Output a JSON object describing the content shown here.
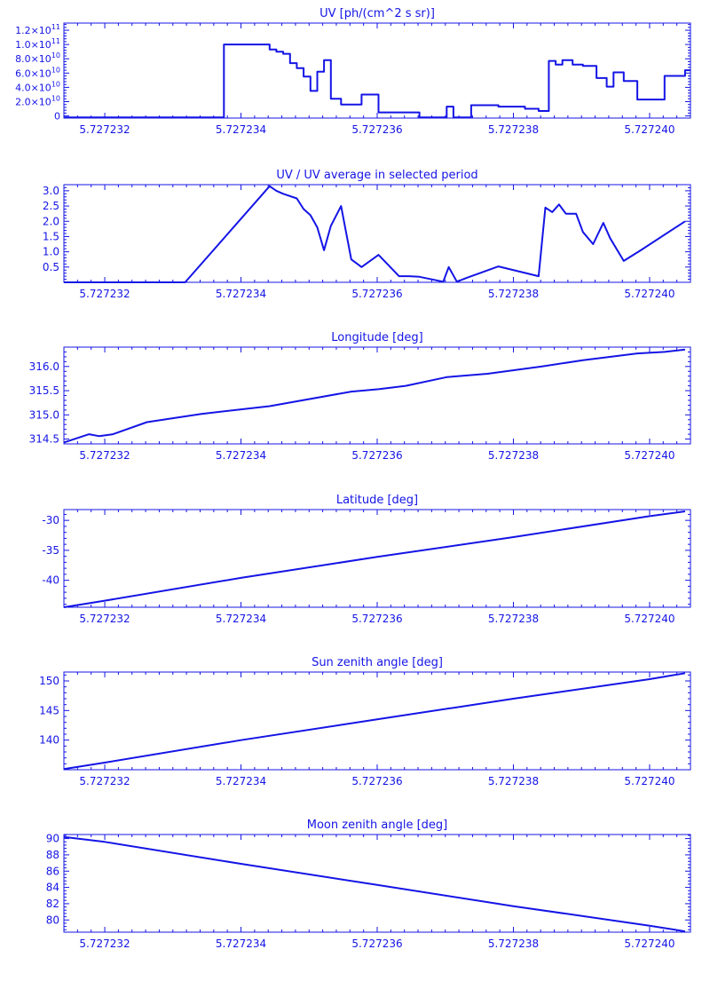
{
  "color": "#1414e6",
  "chart_data": [
    {
      "type": "line",
      "step": true,
      "title": "UV [ph/(cm^2 s sr)]",
      "xlim": [
        5.7272314,
        5.7272406
      ],
      "ylim": [
        -3000000000.0,
        130000000000.0
      ],
      "xticks": [
        5.727232,
        5.727234,
        5.727236,
        5.727238,
        5.72724
      ],
      "xtick_labels": [
        "5.727232",
        "5.727234",
        "5.727236",
        "5.727238",
        "5.727240"
      ],
      "yticks": [
        0,
        20000000000.0,
        40000000000.0,
        60000000000.0,
        80000000000.0,
        100000000000.0,
        120000000000.0
      ],
      "ytick_labels": [
        {
          "mant": "0",
          "exp": ""
        },
        {
          "mant": "2.0×10",
          "exp": "10"
        },
        {
          "mant": "4.0×10",
          "exp": "10"
        },
        {
          "mant": "6.0×10",
          "exp": "10"
        },
        {
          "mant": "8.0×10",
          "exp": "10"
        },
        {
          "mant": "1.0×10",
          "exp": "11"
        },
        {
          "mant": "1.2×10",
          "exp": "11"
        }
      ],
      "x": [
        5.7272314,
        5.72723375,
        5.72723442,
        5.72723452,
        5.72723462,
        5.72723472,
        5.72723482,
        5.72723492,
        5.72723502,
        5.72723512,
        5.72723522,
        5.72723532,
        5.72723547,
        5.72723562,
        5.72723577,
        5.72723602,
        5.72723632,
        5.72723662,
        5.72723702,
        5.72723712,
        5.72723722,
        5.72723738,
        5.72723778,
        5.72723817,
        5.72723837,
        5.72723852,
        5.72723862,
        5.72723872,
        5.72723887,
        5.72723902,
        5.72723922,
        5.72723937,
        5.72723947,
        5.72723962,
        5.72723982,
        5.72724022,
        5.72724052
      ],
      "y": [
        -2000000000.0,
        100000000000.0,
        93000000000.0,
        90000000000.0,
        87000000000.0,
        74000000000.0,
        67000000000.0,
        55000000000.0,
        35000000000.0,
        62000000000.0,
        78000000000.0,
        24000000000.0,
        16000000000.0,
        16000000000.0,
        30000000000.0,
        5000000000.0,
        5000000000.0,
        -2000000000.0,
        13000000000.0,
        -2000000000.0,
        -2000000000.0,
        15000000000.0,
        13000000000.0,
        10000000000.0,
        7000000000.0,
        77000000000.0,
        72000000000.0,
        78000000000.0,
        72000000000.0,
        70000000000.0,
        53000000000.0,
        41000000000.0,
        61000000000.0,
        49000000000.0,
        23000000000.0,
        56000000000.0,
        64000000000.0
      ]
    },
    {
      "type": "line",
      "title": "UV / UV average in selected period",
      "xlim": [
        5.7272314,
        5.7272406
      ],
      "ylim": [
        0.0,
        3.2
      ],
      "xticks": [
        5.727232,
        5.727234,
        5.727236,
        5.727238,
        5.72724
      ],
      "xtick_labels": [
        "5.727232",
        "5.727234",
        "5.727236",
        "5.727238",
        "5.727240"
      ],
      "yticks": [
        0.5,
        1.0,
        1.5,
        2.0,
        2.5,
        3.0
      ],
      "ytick_labels": [
        "0.5",
        "1.0",
        "1.5",
        "2.0",
        "2.5",
        "3.0"
      ],
      "x": [
        5.7272314,
        5.72723318,
        5.72723442,
        5.72723452,
        5.72723462,
        5.72723482,
        5.72723492,
        5.72723502,
        5.72723512,
        5.72723522,
        5.72723532,
        5.72723547,
        5.72723562,
        5.72723577,
        5.72723602,
        5.72723632,
        5.72723647,
        5.72723662,
        5.72723697,
        5.72723705,
        5.72723717,
        5.72723732,
        5.72723778,
        5.72723837,
        5.72723847,
        5.72723857,
        5.72723867,
        5.72723877,
        5.72723892,
        5.72723902,
        5.72723917,
        5.72723932,
        5.72723942,
        5.72723962,
        5.72723987,
        5.72724052
      ],
      "y": [
        0.0,
        0.0,
        3.15,
        3.0,
        2.9,
        2.75,
        2.4,
        2.2,
        1.8,
        1.05,
        1.85,
        2.5,
        0.75,
        0.5,
        0.9,
        0.2,
        0.2,
        0.18,
        0.02,
        0.5,
        0.02,
        0.15,
        0.52,
        0.2,
        2.45,
        2.3,
        2.55,
        2.25,
        2.25,
        1.65,
        1.25,
        1.95,
        1.45,
        0.7,
        1.05,
        2.0
      ]
    },
    {
      "type": "line",
      "title": "Longitude [deg]",
      "xlim": [
        5.7272314,
        5.7272406
      ],
      "ylim": [
        314.4,
        316.4
      ],
      "xticks": [
        5.727232,
        5.727234,
        5.727236,
        5.727238,
        5.72724
      ],
      "xtick_labels": [
        "5.727232",
        "5.727234",
        "5.727236",
        "5.727238",
        "5.727240"
      ],
      "yticks": [
        314.5,
        315.0,
        315.5,
        316.0
      ],
      "ytick_labels": [
        "314.5",
        "315.0",
        "315.5",
        "316.0"
      ],
      "x": [
        5.7272314,
        5.72723177,
        5.72723192,
        5.72723212,
        5.72723262,
        5.72723342,
        5.72723442,
        5.72723562,
        5.72723602,
        5.72723642,
        5.72723702,
        5.72723762,
        5.72723842,
        5.72723902,
        5.72723982,
        5.72724022,
        5.72724052
      ],
      "y": [
        314.43,
        314.6,
        314.56,
        314.6,
        314.85,
        315.02,
        315.18,
        315.48,
        315.53,
        315.6,
        315.78,
        315.85,
        316.0,
        316.13,
        316.27,
        316.3,
        316.35
      ]
    },
    {
      "type": "line",
      "title": "Latitude [deg]",
      "xlim": [
        5.7272314,
        5.7272406
      ],
      "ylim": [
        -44.5,
        -28.2
      ],
      "xticks": [
        5.727232,
        5.727234,
        5.727236,
        5.727238,
        5.72724
      ],
      "xtick_labels": [
        "5.727232",
        "5.727234",
        "5.727236",
        "5.727238",
        "5.727240"
      ],
      "yticks": [
        -40,
        -35,
        -30
      ],
      "ytick_labels": [
        "-40",
        "-35",
        "-30"
      ],
      "x": [
        5.7272314,
        5.727232,
        5.727234,
        5.727236,
        5.727238,
        5.72724,
        5.72724052
      ],
      "y": [
        -44.5,
        -43.4,
        -39.6,
        -36.1,
        -32.8,
        -29.3,
        -28.5
      ]
    },
    {
      "type": "line",
      "title": "Sun zenith angle [deg]",
      "xlim": [
        5.7272314,
        5.7272406
      ],
      "ylim": [
        135.0,
        151.5
      ],
      "xticks": [
        5.727232,
        5.727234,
        5.727236,
        5.727238,
        5.72724
      ],
      "xtick_labels": [
        "5.727232",
        "5.727234",
        "5.727236",
        "5.727238",
        "5.727240"
      ],
      "yticks": [
        140,
        145,
        150
      ],
      "ytick_labels": [
        "140",
        "145",
        "150"
      ],
      "x": [
        5.7272314,
        5.727232,
        5.727234,
        5.727236,
        5.727238,
        5.72724,
        5.72724052
      ],
      "y": [
        135.1,
        136.2,
        140.0,
        143.5,
        147.0,
        150.3,
        151.3
      ]
    },
    {
      "type": "line",
      "title": "Moon zenith angle [deg]",
      "xlim": [
        5.7272314,
        5.7272406
      ],
      "ylim": [
        78.5,
        90.5
      ],
      "xticks": [
        5.727232,
        5.727234,
        5.727236,
        5.727238,
        5.72724
      ],
      "xtick_labels": [
        "5.727232",
        "5.727234",
        "5.727236",
        "5.727238",
        "5.727240"
      ],
      "yticks": [
        80,
        82,
        84,
        86,
        88,
        90
      ],
      "ytick_labels": [
        "80",
        "82",
        "84",
        "86",
        "88",
        "90"
      ],
      "x": [
        5.7272314,
        5.727232,
        5.727234,
        5.727236,
        5.727238,
        5.72724,
        5.72724052
      ],
      "y": [
        90.2,
        89.6,
        86.9,
        84.3,
        81.7,
        79.3,
        78.6
      ]
    }
  ]
}
